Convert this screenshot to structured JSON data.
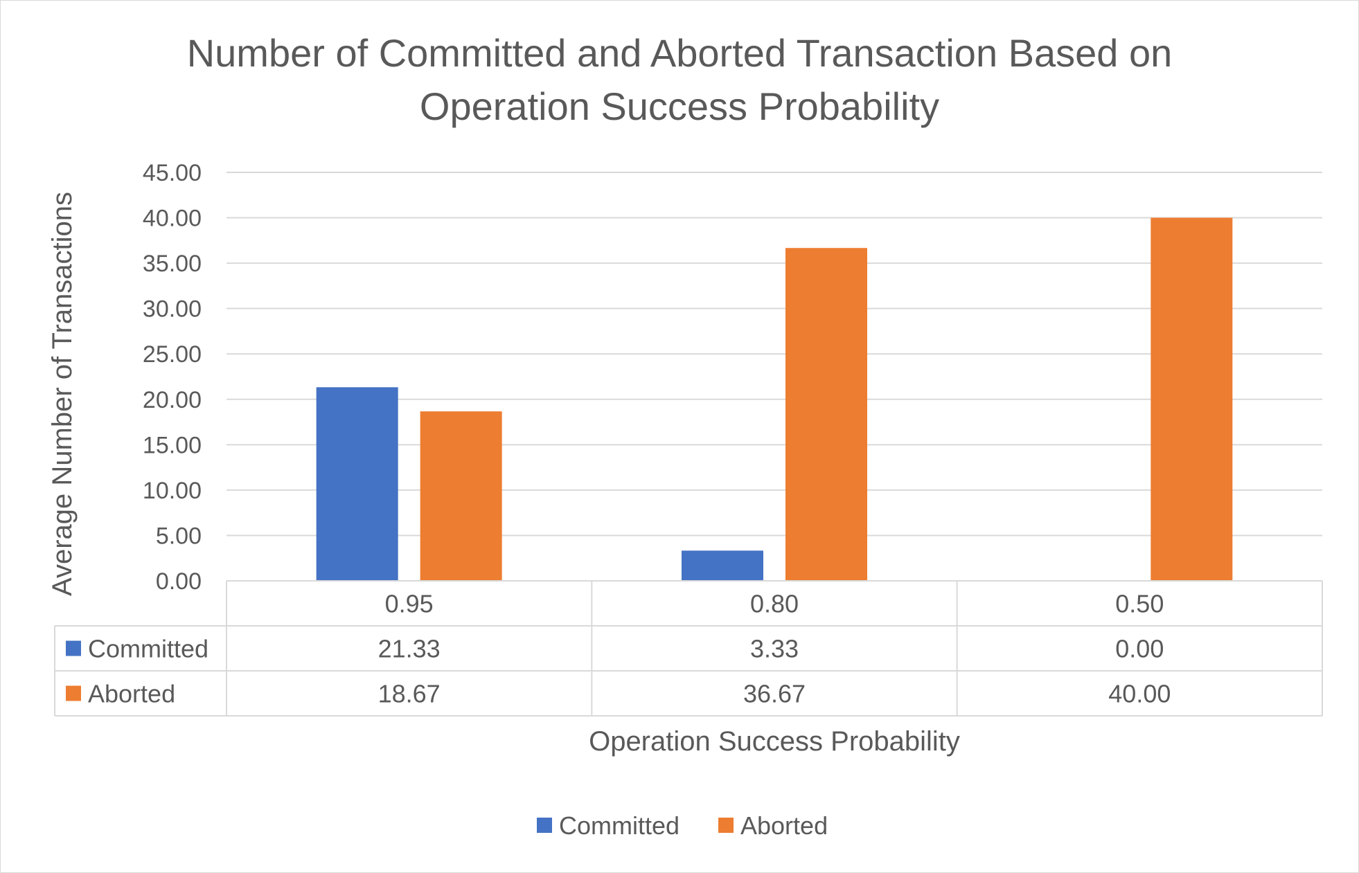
{
  "chart_data": {
    "type": "bar",
    "title": "Number of Committed and Aborted Transaction Based on Operation Success Probability",
    "title_lines": [
      "Number of Committed and Aborted Transaction Based on",
      "Operation Success Probability"
    ],
    "xlabel": "Operation Success Probability",
    "ylabel": "Average Number of Transactions",
    "categories": [
      "0.95",
      "0.80",
      "0.50"
    ],
    "series": [
      {
        "name": "Committed",
        "color": "#4472C4",
        "values": [
          21.33,
          3.33,
          0.0
        ]
      },
      {
        "name": "Aborted",
        "color": "#ED7D31",
        "values": [
          18.67,
          36.67,
          40.0
        ]
      }
    ],
    "ylim": [
      0,
      45
    ],
    "ytick_step": 5,
    "ytick_labels": [
      "0.00",
      "5.00",
      "10.00",
      "15.00",
      "20.00",
      "25.00",
      "30.00",
      "35.00",
      "40.00",
      "45.00"
    ],
    "data_table": {
      "rows": [
        {
          "series": "Committed",
          "cells": [
            "21.33",
            "3.33",
            "0.00"
          ]
        },
        {
          "series": "Aborted",
          "cells": [
            "18.67",
            "36.67",
            "40.00"
          ]
        }
      ]
    },
    "grid": true,
    "legend": "bottom"
  },
  "colors": {
    "committed": "#4472C4",
    "aborted": "#ED7D31",
    "text": "#595959",
    "grid": "#d9d9d9"
  }
}
